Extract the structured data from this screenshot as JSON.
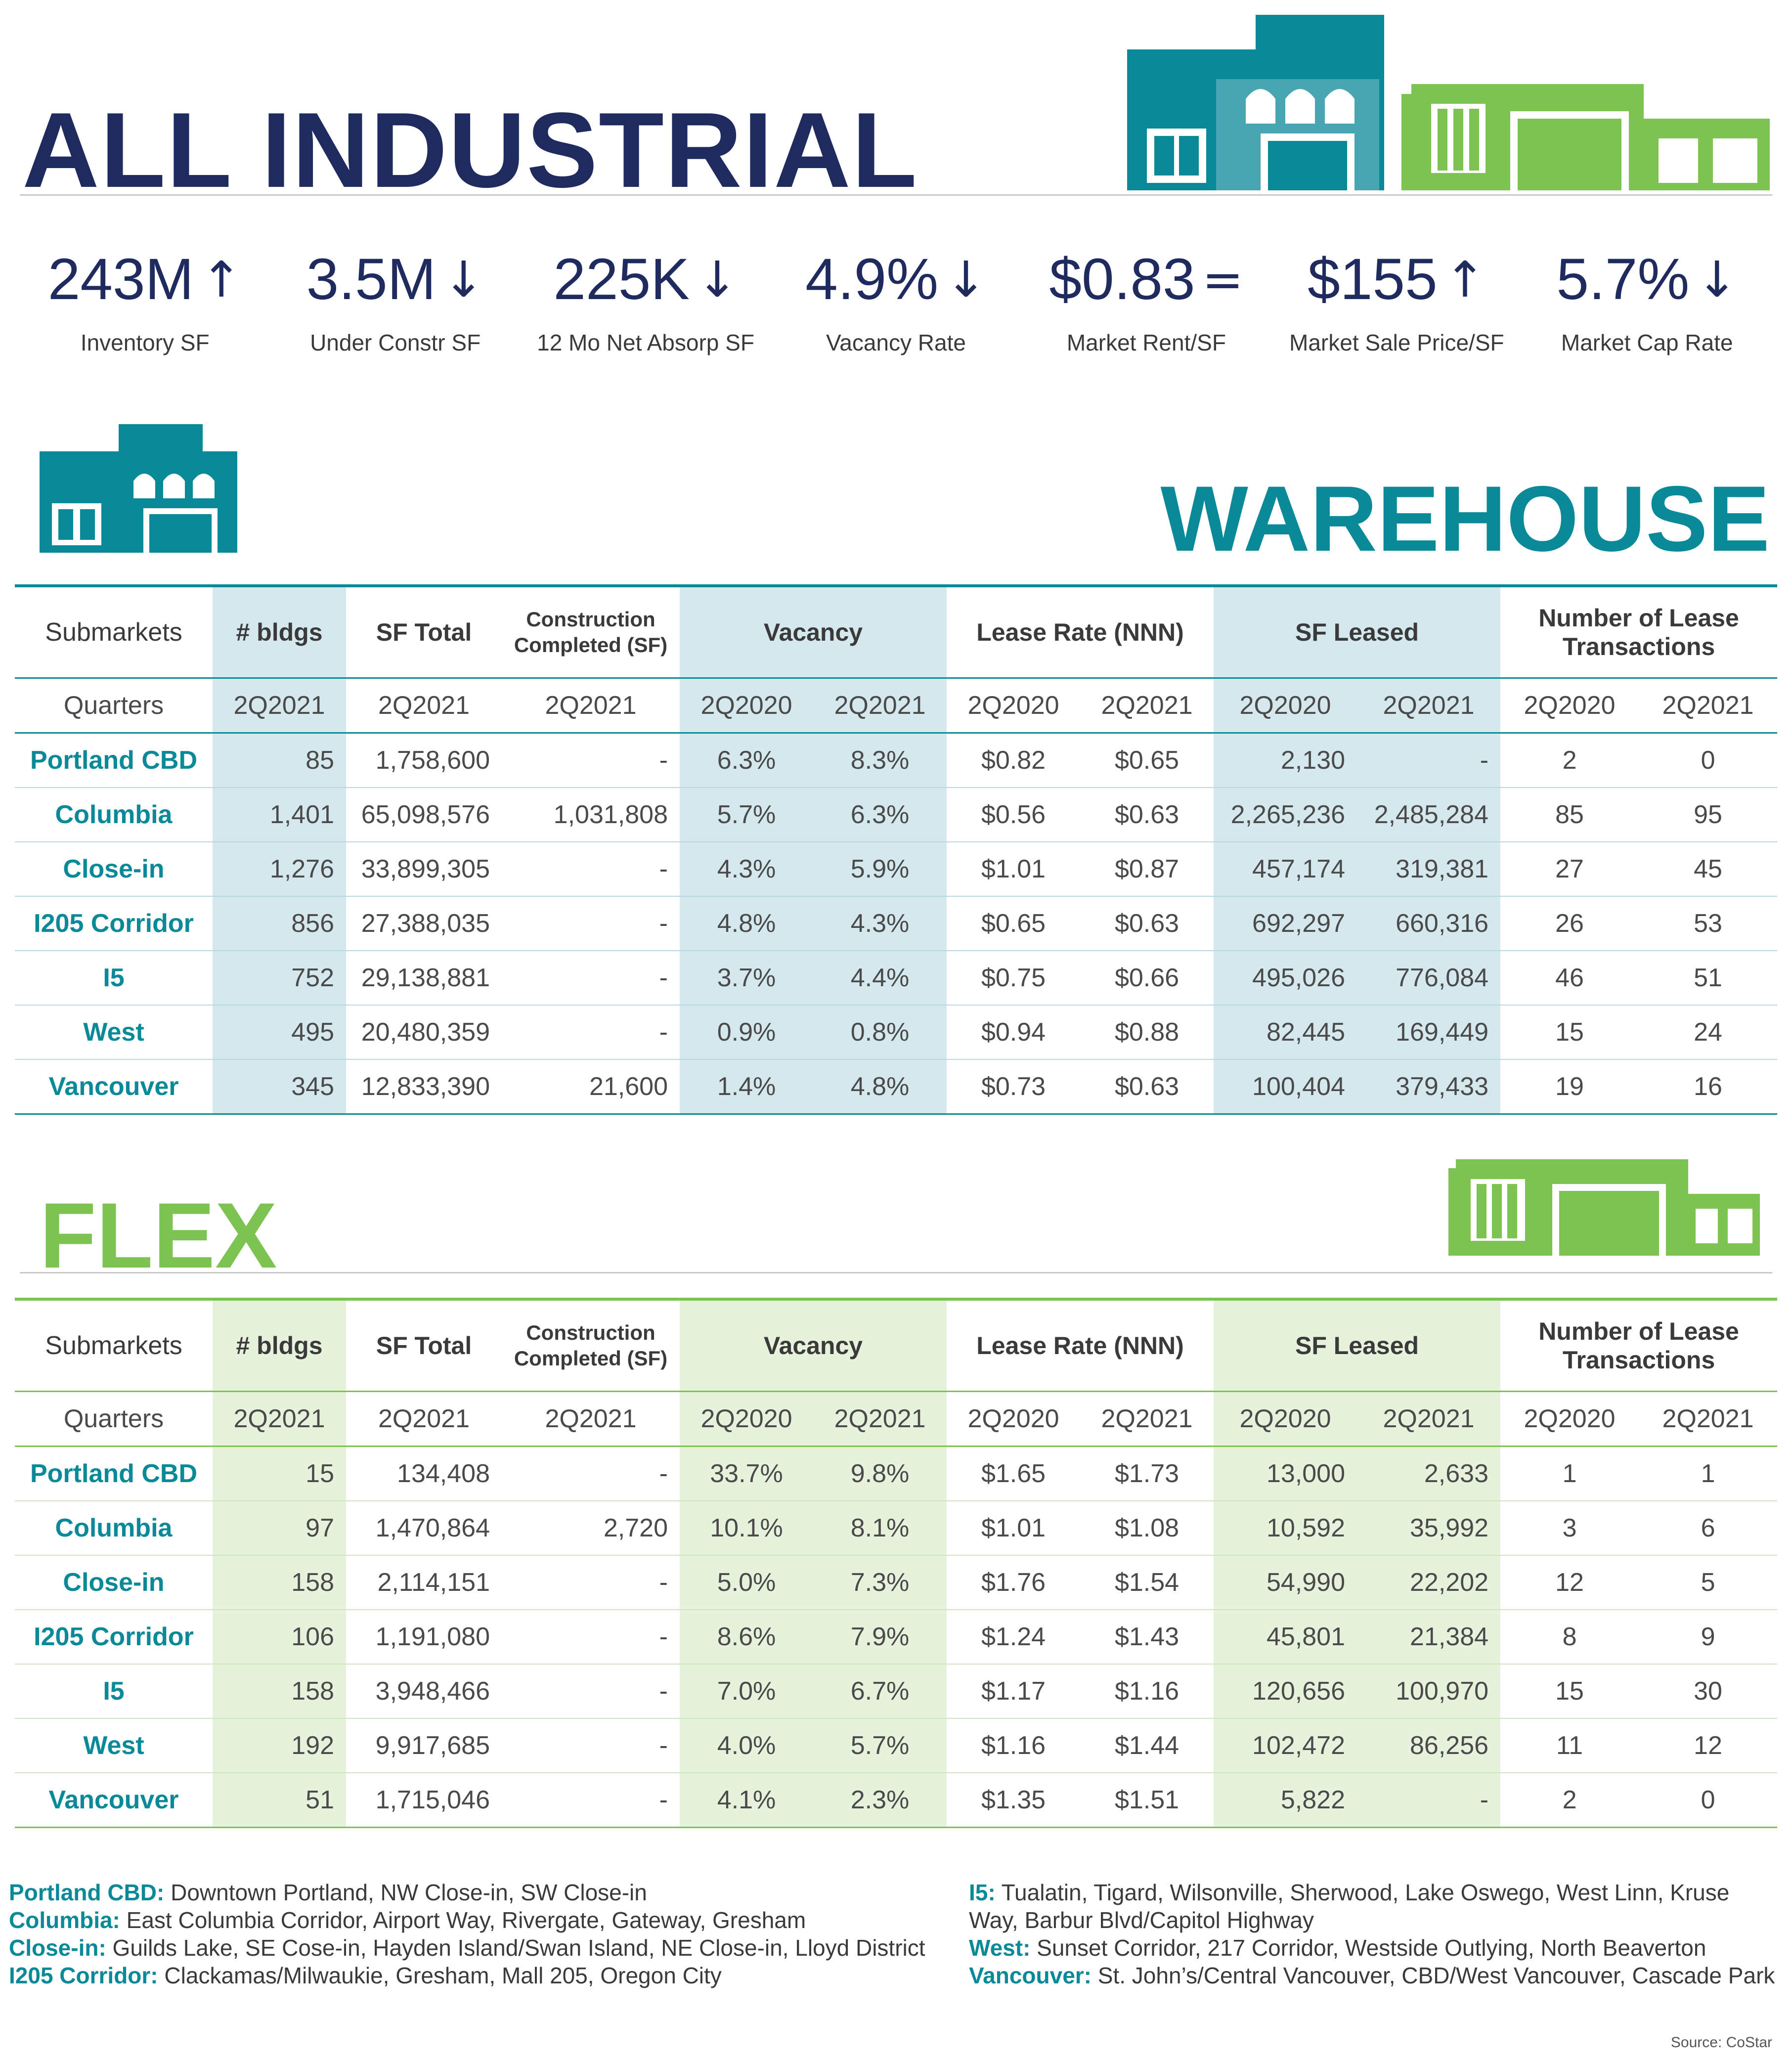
{
  "title": "ALL INDUSTRIAL",
  "kpis": [
    {
      "value": "243M",
      "arrow": "up",
      "label": "Inventory SF"
    },
    {
      "value": "3.5M",
      "arrow": "down",
      "label": "Under Constr SF"
    },
    {
      "value": "225K",
      "arrow": "down",
      "label": "12 Mo Net Absorp SF"
    },
    {
      "value": "4.9%",
      "arrow": "down",
      "label": "Vacancy Rate"
    },
    {
      "value": "$0.83",
      "arrow": "equal",
      "label": "Market Rent/SF"
    },
    {
      "value": "$155",
      "arrow": "up",
      "label": "Market Sale Price/SF"
    },
    {
      "value": "5.7%",
      "arrow": "down",
      "label": "Market Cap Rate"
    }
  ],
  "colors": {
    "navy": "#1f2b5f",
    "teal": "#0a8998",
    "green": "#7cc352",
    "teal_shade": "#d4e8ee",
    "green_shade": "#e6f2dc"
  },
  "icons": [
    "industrial-buildings-icon",
    "warehouse-building-icon",
    "flex-building-icon"
  ],
  "headers": {
    "submarkets": "Submarkets",
    "bldgs": "# bldgs",
    "sf_total": "SF Total",
    "constr_line1": "Construction",
    "constr_line2": "Completed (SF)",
    "vacancy": "Vacancy",
    "lease_rate": "Lease Rate (NNN)",
    "sf_leased": "SF Leased",
    "trans_line1": "Number of Lease",
    "trans_line2": "Transactions"
  },
  "quarters": {
    "label": "Quarters",
    "cols": [
      "2Q2021",
      "2Q2021",
      "2Q2021",
      "2Q2020",
      "2Q2021",
      "2Q2020",
      "2Q2021",
      "2Q2020",
      "2Q2021",
      "2Q2020",
      "2Q2021"
    ]
  },
  "warehouse": {
    "title": "WAREHOUSE",
    "rows": [
      [
        "Portland CBD",
        "85",
        "1,758,600",
        "-",
        "6.3%",
        "8.3%",
        "$0.82",
        "$0.65",
        "2,130",
        "-",
        "2",
        "0"
      ],
      [
        "Columbia",
        "1,401",
        "65,098,576",
        "1,031,808",
        "5.7%",
        "6.3%",
        "$0.56",
        "$0.63",
        "2,265,236",
        "2,485,284",
        "85",
        "95"
      ],
      [
        "Close-in",
        "1,276",
        "33,899,305",
        "-",
        "4.3%",
        "5.9%",
        "$1.01",
        "$0.87",
        "457,174",
        "319,381",
        "27",
        "45"
      ],
      [
        "I205 Corridor",
        "856",
        "27,388,035",
        "-",
        "4.8%",
        "4.3%",
        "$0.65",
        "$0.63",
        "692,297",
        "660,316",
        "26",
        "53"
      ],
      [
        "I5",
        "752",
        "29,138,881",
        "-",
        "3.7%",
        "4.4%",
        "$0.75",
        "$0.66",
        "495,026",
        "776,084",
        "46",
        "51"
      ],
      [
        "West",
        "495",
        "20,480,359",
        "-",
        "0.9%",
        "0.8%",
        "$0.94",
        "$0.88",
        "82,445",
        "169,449",
        "15",
        "24"
      ],
      [
        "Vancouver",
        "345",
        "12,833,390",
        "21,600",
        "1.4%",
        "4.8%",
        "$0.73",
        "$0.63",
        "100,404",
        "379,433",
        "19",
        "16"
      ]
    ]
  },
  "flex": {
    "title": "FLEX",
    "rows": [
      [
        "Portland CBD",
        "15",
        "134,408",
        "-",
        "33.7%",
        "9.8%",
        "$1.65",
        "$1.73",
        "13,000",
        "2,633",
        "1",
        "1"
      ],
      [
        "Columbia",
        "97",
        "1,470,864",
        "2,720",
        "10.1%",
        "8.1%",
        "$1.01",
        "$1.08",
        "10,592",
        "35,992",
        "3",
        "6"
      ],
      [
        "Close-in",
        "158",
        "2,114,151",
        "-",
        "5.0%",
        "7.3%",
        "$1.76",
        "$1.54",
        "54,990",
        "22,202",
        "12",
        "5"
      ],
      [
        "I205 Corridor",
        "106",
        "1,191,080",
        "-",
        "8.6%",
        "7.9%",
        "$1.24",
        "$1.43",
        "45,801",
        "21,384",
        "8",
        "9"
      ],
      [
        "I5",
        "158",
        "3,948,466",
        "-",
        "7.0%",
        "6.7%",
        "$1.17",
        "$1.16",
        "120,656",
        "100,970",
        "15",
        "30"
      ],
      [
        "West",
        "192",
        "9,917,685",
        "-",
        "4.0%",
        "5.7%",
        "$1.16",
        "$1.44",
        "102,472",
        "86,256",
        "11",
        "12"
      ],
      [
        "Vancouver",
        "51",
        "1,715,046",
        "-",
        "4.1%",
        "2.3%",
        "$1.35",
        "$1.51",
        "5,822",
        "-",
        "2",
        "0"
      ]
    ]
  },
  "legend": {
    "left": [
      {
        "name": "Portland CBD:",
        "desc": " Downtown Portland, NW Close-in, SW Close-in"
      },
      {
        "name": "Columbia:",
        "desc": " East Columbia Corridor, Airport Way, Rivergate, Gateway, Gresham"
      },
      {
        "name": "Close-in:",
        "desc": " Guilds Lake, SE Cose-in, Hayden Island/Swan Island, NE Close-in, Lloyd District"
      },
      {
        "name": "I205 Corridor:",
        "desc": " Clackamas/Milwaukie, Gresham, Mall 205, Oregon City"
      }
    ],
    "right": [
      {
        "name": "I5:",
        "desc": " Tualatin, Tigard, Wilsonville, Sherwood, Lake Oswego, West Linn, Kruse Way, Barbur Blvd/Capitol Highway"
      },
      {
        "name": "West:",
        "desc": " Sunset Corridor, 217 Corridor, Westside Outlying, North Beaverton"
      },
      {
        "name": "Vancouver:",
        "desc": " St. John’s/Central Vancouver, CBD/West Vancouver, Cascade Park"
      }
    ]
  },
  "source": "Source: CoStar"
}
